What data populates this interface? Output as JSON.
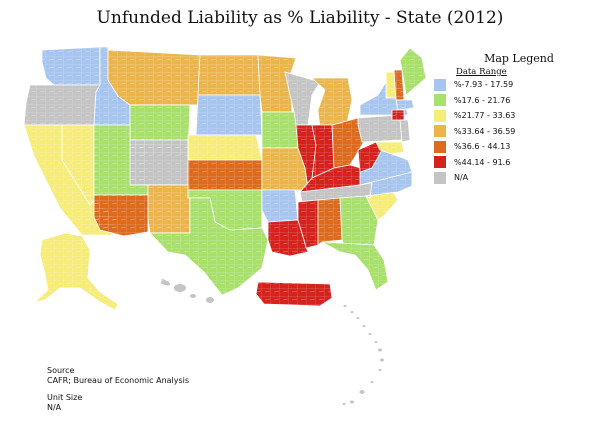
{
  "title": "Unfunded Liability as % Liability - State (2012)",
  "legend": {
    "title": "Map Legend",
    "subtitle": "Data Range",
    "items": [
      {
        "label": "%-7.93 - 17.59",
        "color": "#a7c5ef"
      },
      {
        "label": "%17.6 - 21.76",
        "color": "#a8e06b"
      },
      {
        "label": "%21.77 - 33.63",
        "color": "#f5ec7a"
      },
      {
        "label": "%33.64 - 36.59",
        "color": "#ebb54b"
      },
      {
        "label": "%36.6 - 44.13",
        "color": "#de6a1d"
      },
      {
        "label": "%44.14 - 91.6",
        "color": "#d5221d"
      },
      {
        "label": "N/A",
        "color": "#c4c4c4"
      }
    ]
  },
  "source": {
    "heading": "Source",
    "value": "CAFR; Bureau of Economic Analysis"
  },
  "unit": {
    "heading": "Unit Size",
    "value": "N/A"
  },
  "map_data": {
    "states": [
      {
        "id": "WA",
        "bin": 0
      },
      {
        "id": "OR",
        "bin": 6
      },
      {
        "id": "CA",
        "bin": 2
      },
      {
        "id": "NV",
        "bin": 2
      },
      {
        "id": "ID",
        "bin": 0
      },
      {
        "id": "MT",
        "bin": 3
      },
      {
        "id": "WY",
        "bin": 1
      },
      {
        "id": "UT",
        "bin": 1
      },
      {
        "id": "AZ",
        "bin": 4
      },
      {
        "id": "CO",
        "bin": 6
      },
      {
        "id": "NM",
        "bin": 3
      },
      {
        "id": "ND",
        "bin": 3
      },
      {
        "id": "SD",
        "bin": 0
      },
      {
        "id": "NE",
        "bin": 2
      },
      {
        "id": "KS",
        "bin": 4
      },
      {
        "id": "OK",
        "bin": 1
      },
      {
        "id": "TX",
        "bin": 1
      },
      {
        "id": "MN",
        "bin": 3
      },
      {
        "id": "IA",
        "bin": 1
      },
      {
        "id": "MO",
        "bin": 3
      },
      {
        "id": "AR",
        "bin": 0
      },
      {
        "id": "LA",
        "bin": 5
      },
      {
        "id": "WI",
        "bin": 6
      },
      {
        "id": "IL",
        "bin": 5
      },
      {
        "id": "MI",
        "bin": 3
      },
      {
        "id": "IN",
        "bin": 5
      },
      {
        "id": "OH",
        "bin": 4
      },
      {
        "id": "KY",
        "bin": 5
      },
      {
        "id": "TN",
        "bin": 6
      },
      {
        "id": "MS",
        "bin": 5
      },
      {
        "id": "AL",
        "bin": 4
      },
      {
        "id": "GA",
        "bin": 1
      },
      {
        "id": "FL",
        "bin": 1
      },
      {
        "id": "SC",
        "bin": 2
      },
      {
        "id": "NC",
        "bin": 0
      },
      {
        "id": "VA",
        "bin": 0
      },
      {
        "id": "WV",
        "bin": 5
      },
      {
        "id": "PA",
        "bin": 6
      },
      {
        "id": "NY",
        "bin": 0
      },
      {
        "id": "VT",
        "bin": 2
      },
      {
        "id": "NH",
        "bin": 4
      },
      {
        "id": "ME",
        "bin": 1
      },
      {
        "id": "MA",
        "bin": 0
      },
      {
        "id": "CT",
        "bin": 5
      },
      {
        "id": "NJ",
        "bin": 6
      },
      {
        "id": "MD",
        "bin": 2
      },
      {
        "id": "AK",
        "bin": 2
      },
      {
        "id": "HI",
        "bin": 6
      },
      {
        "id": "PR",
        "bin": 5
      }
    ]
  }
}
